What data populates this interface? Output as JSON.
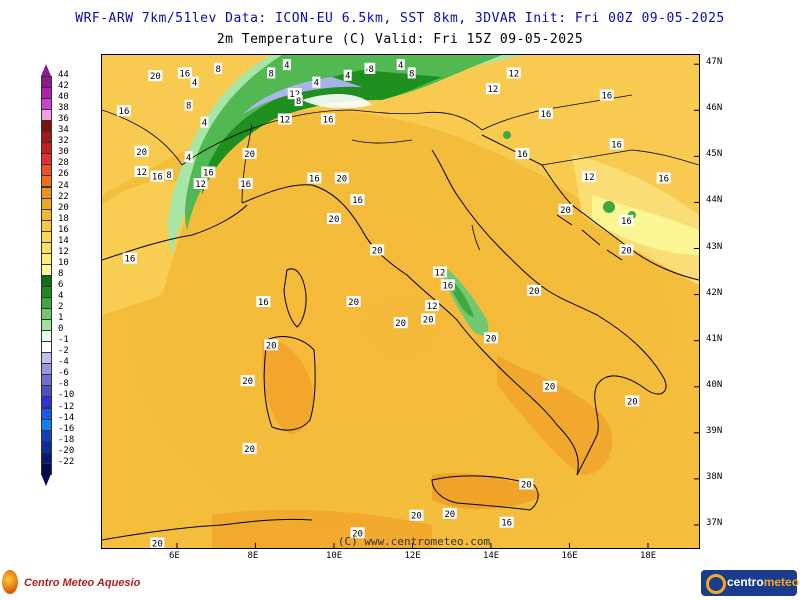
{
  "header": {
    "line1": "WRF-ARW 7km/51lev   Data: ICON-EU 6.5km, SST 8km, 3DVAR   Init: Fri 00Z 09-05-2025",
    "line2": "2m Temperature (C)  Valid: Fri 15Z 09-05-2025"
  },
  "copyright": "(C) www.centrometeo.com",
  "latitudes": [
    "47N",
    "46N",
    "45N",
    "44N",
    "43N",
    "42N",
    "41N",
    "40N",
    "39N",
    "38N",
    "37N"
  ],
  "longitudes": [
    "6E",
    "8E",
    "10E",
    "12E",
    "14E",
    "16E",
    "18E"
  ],
  "colorbar": {
    "labels": [
      "44",
      "42",
      "40",
      "38",
      "36",
      "34",
      "32",
      "30",
      "28",
      "26",
      "24",
      "22",
      "20",
      "18",
      "16",
      "14",
      "12",
      "10",
      "8",
      "6",
      "4",
      "2",
      "1",
      "0",
      "-1",
      "-2",
      "-4",
      "-6",
      "-8",
      "-10",
      "-12",
      "-14",
      "-16",
      "-18",
      "-20",
      "-22"
    ],
    "colors": [
      "#8c1a8c",
      "#b020b0",
      "#d040d0",
      "#f0a0e0",
      "#801010",
      "#a01818",
      "#c02020",
      "#e03030",
      "#f05020",
      "#f07020",
      "#f09020",
      "#f0a820",
      "#f0b830",
      "#f8c840",
      "#f8d850",
      "#fae060",
      "#faf07a",
      "#fafa9a",
      "#106e10",
      "#208a20",
      "#40a840",
      "#70c870",
      "#a0e0a0",
      "#e8ffe8",
      "#ffffff",
      "#c0c0f0",
      "#9898e0",
      "#7070d0",
      "#5050c0",
      "#3030e0",
      "#1858f0",
      "#1080f0",
      "#1040c0",
      "#0c2c9a",
      "#081878",
      "#040a50"
    ]
  },
  "isolines": [
    {
      "label": "20",
      "lon": 5.45,
      "lat": 46.74
    },
    {
      "label": "16",
      "lon": 6.2,
      "lat": 46.8
    },
    {
      "label": "4",
      "lon": 6.45,
      "lat": 46.6
    },
    {
      "label": "8",
      "lon": 7.05,
      "lat": 46.9
    },
    {
      "label": "8",
      "lon": 8.4,
      "lat": 46.8
    },
    {
      "label": "4",
      "lon": 8.8,
      "lat": 46.98
    },
    {
      "label": "4",
      "lon": 9.55,
      "lat": 46.6
    },
    {
      "label": "12",
      "lon": 9.0,
      "lat": 46.35
    },
    {
      "label": "8",
      "lon": 9.1,
      "lat": 46.2
    },
    {
      "label": "4",
      "lon": 10.35,
      "lat": 46.75
    },
    {
      "label": "4",
      "lon": 10.88,
      "lat": 46.9
    },
    {
      "label": "8",
      "lon": 10.95,
      "lat": 46.9
    },
    {
      "label": "4",
      "lon": 11.7,
      "lat": 46.98
    },
    {
      "label": "8",
      "lon": 11.98,
      "lat": 46.8
    },
    {
      "label": "12",
      "lon": 14.58,
      "lat": 46.8
    },
    {
      "label": "12",
      "lon": 14.05,
      "lat": 46.46
    },
    {
      "label": "16",
      "lon": 16.95,
      "lat": 46.32
    },
    {
      "label": "16",
      "lon": 4.65,
      "lat": 45.98
    },
    {
      "label": "8",
      "lon": 6.3,
      "lat": 46.1
    },
    {
      "label": "4",
      "lon": 6.7,
      "lat": 45.73
    },
    {
      "label": "16",
      "lon": 15.4,
      "lat": 45.92
    },
    {
      "label": "12",
      "lon": 8.75,
      "lat": 45.8
    },
    {
      "label": "16",
      "lon": 9.85,
      "lat": 45.8
    },
    {
      "label": "20",
      "lon": 5.1,
      "lat": 45.1
    },
    {
      "label": "16",
      "lon": 17.2,
      "lat": 45.26
    },
    {
      "label": "12",
      "lon": 5.1,
      "lat": 44.66
    },
    {
      "label": "16",
      "lon": 5.5,
      "lat": 44.56
    },
    {
      "label": "8",
      "lon": 5.8,
      "lat": 44.6
    },
    {
      "label": "4",
      "lon": 6.3,
      "lat": 44.98
    },
    {
      "label": "20",
      "lon": 7.85,
      "lat": 45.05
    },
    {
      "label": "16",
      "lon": 14.8,
      "lat": 45.05
    },
    {
      "label": "16",
      "lon": 6.8,
      "lat": 44.65
    },
    {
      "label": "12",
      "lon": 6.6,
      "lat": 44.4
    },
    {
      "label": "16",
      "lon": 7.75,
      "lat": 44.4
    },
    {
      "label": "16",
      "lon": 9.5,
      "lat": 44.52
    },
    {
      "label": "20",
      "lon": 10.2,
      "lat": 44.52
    },
    {
      "label": "12",
      "lon": 16.5,
      "lat": 44.55
    },
    {
      "label": "16",
      "lon": 18.4,
      "lat": 44.52
    },
    {
      "label": "16",
      "lon": 10.6,
      "lat": 44.05
    },
    {
      "label": "20",
      "lon": 15.9,
      "lat": 43.84
    },
    {
      "label": "20",
      "lon": 10.0,
      "lat": 43.64
    },
    {
      "label": "16",
      "lon": 17.45,
      "lat": 43.6
    },
    {
      "label": "20",
      "lon": 11.1,
      "lat": 42.96
    },
    {
      "label": "20",
      "lon": 17.45,
      "lat": 42.96
    },
    {
      "label": "16",
      "lon": 4.8,
      "lat": 42.78
    },
    {
      "label": "12",
      "lon": 12.7,
      "lat": 42.48
    },
    {
      "label": "16",
      "lon": 12.9,
      "lat": 42.2
    },
    {
      "label": "20",
      "lon": 15.1,
      "lat": 42.08
    },
    {
      "label": "16",
      "lon": 8.2,
      "lat": 41.84
    },
    {
      "label": "20",
      "lon": 10.5,
      "lat": 41.84
    },
    {
      "label": "12",
      "lon": 12.5,
      "lat": 41.75
    },
    {
      "label": "20",
      "lon": 11.7,
      "lat": 41.38
    },
    {
      "label": "20",
      "lon": 12.4,
      "lat": 41.46
    },
    {
      "label": "20",
      "lon": 14.0,
      "lat": 41.05
    },
    {
      "label": "20",
      "lon": 8.4,
      "lat": 40.9
    },
    {
      "label": "20",
      "lon": 7.8,
      "lat": 40.12
    },
    {
      "label": "20",
      "lon": 15.5,
      "lat": 40.0
    },
    {
      "label": "20",
      "lon": 17.6,
      "lat": 39.68
    },
    {
      "label": "20",
      "lon": 7.85,
      "lat": 38.65
    },
    {
      "label": "20",
      "lon": 14.9,
      "lat": 37.88
    },
    {
      "label": "20",
      "lon": 12.1,
      "lat": 37.2
    },
    {
      "label": "20",
      "lon": 12.95,
      "lat": 37.24
    },
    {
      "label": "16",
      "lon": 14.4,
      "lat": 37.05
    },
    {
      "label": "20",
      "lon": 5.5,
      "lat": 36.6
    },
    {
      "label": "20",
      "lon": 10.6,
      "lat": 36.82
    }
  ]
}
